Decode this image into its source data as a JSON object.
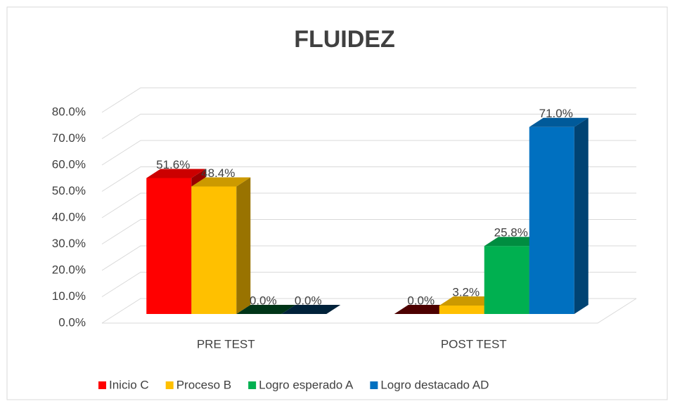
{
  "chart_data": {
    "type": "bar3d",
    "title": "FLUIDEZ",
    "categories": [
      "PRE TEST",
      "POST TEST"
    ],
    "series": [
      {
        "name": "Inicio C",
        "color": "#ff0000",
        "values": [
          51.6,
          0.0
        ],
        "value_labels": [
          "51.6%",
          "0.0%"
        ]
      },
      {
        "name": "Proceso B",
        "color": "#ffc000",
        "values": [
          48.4,
          3.2
        ],
        "value_labels": [
          "48.4%",
          "3.2%"
        ]
      },
      {
        "name": "Logro esperado A",
        "color": "#00b050",
        "values": [
          0.0,
          25.8
        ],
        "value_labels": [
          "0.0%",
          "25.8%"
        ]
      },
      {
        "name": "Logro destacado AD",
        "color": "#0070c0",
        "values": [
          0.0,
          71.0
        ],
        "value_labels": [
          "0.0%",
          "71.0%"
        ]
      }
    ],
    "ylim": [
      0,
      80
    ],
    "yticks": [
      {
        "value": 0,
        "label": "0.0%"
      },
      {
        "value": 10,
        "label": "10.0%"
      },
      {
        "value": 20,
        "label": "20.0%"
      },
      {
        "value": 30,
        "label": "30.0%"
      },
      {
        "value": 40,
        "label": "40.0%"
      },
      {
        "value": 50,
        "label": "50.0%"
      },
      {
        "value": 60,
        "label": "60.0%"
      },
      {
        "value": 70,
        "label": "70.0%"
      },
      {
        "value": 80,
        "label": "80.0%"
      }
    ],
    "grid": true,
    "legend": "bottom"
  }
}
